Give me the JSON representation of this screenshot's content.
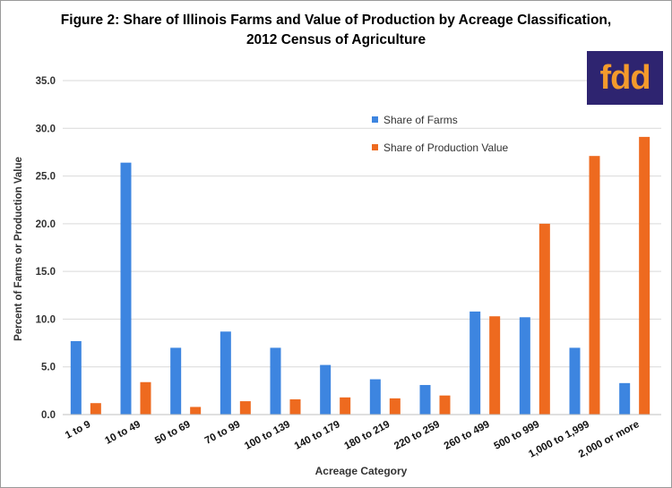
{
  "chart_data": {
    "type": "bar",
    "title_line1": "Figure 2: Share of Illinois  Farms and Value of Production by Acreage Classification,",
    "title_line2": "2012 Census of Agriculture",
    "xlabel": "Acreage Category",
    "ylabel": "Percent of Farms or Production Value",
    "ylim": [
      0,
      35
    ],
    "yticks": [
      "0.0",
      "5.0",
      "10.0",
      "15.0",
      "20.0",
      "25.0",
      "30.0",
      "35.0"
    ],
    "categories": [
      "1 to 9",
      "10 to 49",
      "50 to 69",
      "70 to 99",
      "100 to 139",
      "140 to 179",
      "180 to 219",
      "220 to 259",
      "260 to 499",
      "500 to 999",
      "1,000 to 1,999",
      "2,000 or more"
    ],
    "series": [
      {
        "name": "Share of Farms",
        "color": "#3d85e0",
        "values": [
          7.7,
          26.4,
          7.0,
          8.7,
          7.0,
          5.2,
          3.7,
          3.1,
          10.8,
          10.2,
          7.0,
          3.3
        ]
      },
      {
        "name": "Share of Production Value",
        "color": "#ee6a1f",
        "values": [
          1.2,
          3.4,
          0.8,
          1.4,
          1.6,
          1.8,
          1.7,
          2.0,
          10.3,
          20.0,
          27.1,
          29.1
        ]
      }
    ],
    "legend_position": "top-right",
    "grid": true
  },
  "logo": {
    "text": "fdd",
    "bg": "#2e2470",
    "fg": "#f39a2c"
  }
}
